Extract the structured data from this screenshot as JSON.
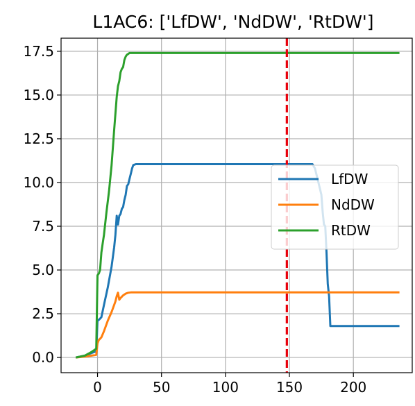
{
  "chart_data": {
    "type": "line",
    "title": "L1AC6: ['LfDW', 'NdDW', 'RtDW']",
    "xlabel": "",
    "ylabel": "",
    "xlim": [
      -28.5,
      246
    ],
    "ylim": [
      -0.87,
      18.25
    ],
    "xticks": [
      0,
      50,
      100,
      150,
      200
    ],
    "yticks": [
      0.0,
      2.5,
      5.0,
      7.5,
      10.0,
      12.5,
      15.0,
      17.5
    ],
    "xtick_labels": [
      "0",
      "50",
      "100",
      "150",
      "200"
    ],
    "ytick_labels": [
      "0.0",
      "2.5",
      "5.0",
      "7.5",
      "10.0",
      "12.5",
      "15.0",
      "17.5"
    ],
    "grid": true,
    "legend_position": "center-right",
    "vline": {
      "x": 148,
      "color": "#e8000b",
      "style": "dashed"
    },
    "series": [
      {
        "name": "LfDW",
        "color": "#1f77b4",
        "x": [
          -17,
          -10,
          -5,
          -1,
          0,
          1,
          3,
          5,
          8,
          11,
          13,
          14,
          15,
          16,
          17,
          18,
          19,
          20,
          21,
          22,
          23,
          24,
          25,
          26,
          27,
          28,
          30,
          50,
          100,
          150,
          160,
          168,
          170,
          172,
          174,
          175,
          176,
          177,
          178,
          179,
          180,
          181,
          182,
          200,
          236
        ],
        "y": [
          0.0,
          0.1,
          0.25,
          0.35,
          2.1,
          2.15,
          2.3,
          3.0,
          4.0,
          5.2,
          6.3,
          7.0,
          8.1,
          7.6,
          8.1,
          8.2,
          8.5,
          8.6,
          9.0,
          9.3,
          9.8,
          9.9,
          10.2,
          10.5,
          10.8,
          11.0,
          11.05,
          11.05,
          11.05,
          11.05,
          11.05,
          11.05,
          10.8,
          10.2,
          9.6,
          9.3,
          8.3,
          7.6,
          7.5,
          6.0,
          4.2,
          3.5,
          1.8,
          1.8,
          1.8
        ]
      },
      {
        "name": "NdDW",
        "color": "#ff7f0e",
        "x": [
          -17,
          -10,
          -5,
          -1,
          0,
          1,
          3,
          5,
          8,
          11,
          13,
          14,
          15,
          16,
          17,
          18,
          20,
          22,
          24,
          26,
          28,
          30,
          50,
          100,
          150,
          200,
          236
        ],
        "y": [
          0.0,
          0.05,
          0.1,
          0.15,
          0.8,
          1.0,
          1.15,
          1.5,
          2.1,
          2.6,
          3.0,
          3.2,
          3.5,
          3.7,
          3.3,
          3.4,
          3.55,
          3.65,
          3.7,
          3.72,
          3.72,
          3.72,
          3.72,
          3.72,
          3.72,
          3.72,
          3.72
        ]
      },
      {
        "name": "RtDW",
        "color": "#2ca02c",
        "x": [
          -17,
          -10,
          -5,
          -1,
          0,
          1,
          2,
          3,
          4,
          5,
          7,
          9,
          11,
          13,
          15,
          16,
          17,
          18,
          19,
          20,
          21,
          22,
          23,
          24,
          25,
          27,
          30,
          50,
          100,
          150,
          200,
          236
        ],
        "y": [
          0.0,
          0.1,
          0.3,
          0.5,
          4.7,
          4.8,
          5.0,
          6.0,
          6.5,
          7.0,
          8.3,
          9.5,
          11.0,
          13.0,
          14.9,
          15.5,
          15.8,
          16.3,
          16.5,
          16.6,
          17.0,
          17.2,
          17.3,
          17.35,
          17.4,
          17.4,
          17.4,
          17.4,
          17.4,
          17.4,
          17.4,
          17.4
        ]
      }
    ]
  }
}
